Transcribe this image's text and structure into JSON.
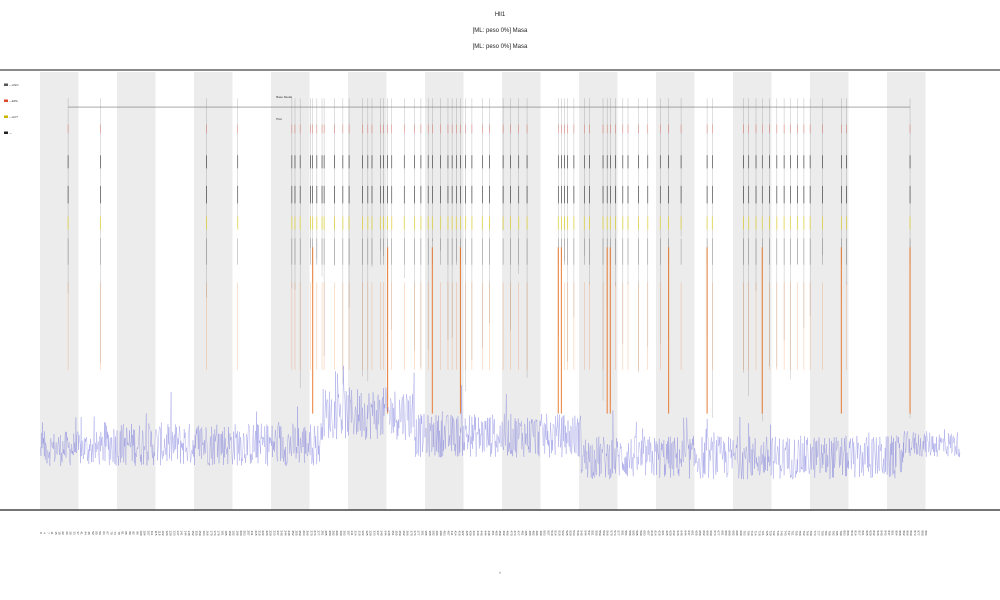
{
  "chart_data": {
    "type": "line",
    "title_lines": [
      "Hll1",
      "[ML: peso 0%] Masa",
      "[ML: peso 0%] Masa"
    ],
    "xlabel": "t",
    "ylabel": "",
    "x_range": [
      0,
      884
    ],
    "y_range": [
      0,
      1
    ],
    "grid": false,
    "shaded_bands": true,
    "legend": {
      "placement": "left",
      "entries": [
        {
          "label": "—ANO",
          "color": "#555555"
        },
        {
          "label": "—EPA",
          "color": "#d94a2a"
        },
        {
          "label": "—ACT",
          "color": "#c9b400"
        },
        {
          "label": "—",
          "color": "#222222"
        }
      ]
    },
    "inline_labels": [
      {
        "text": "Base Media",
        "x": 227
      },
      {
        "text": "Pico",
        "x": 227
      }
    ],
    "colors": {
      "baseline": "#6b6bd9",
      "spike_orange": "#e8762a",
      "spike_red": "#d93a2a",
      "spike_yellow": "#e0d020",
      "spike_dark": "#333333",
      "band": "#ececec"
    },
    "series": [
      {
        "name": "Base",
        "color": "#6b6bd9",
        "segments": [
          {
            "x0": 0,
            "x1": 60,
            "level": 0.14,
            "noise": 0.04
          },
          {
            "x0": 60,
            "x1": 270,
            "level": 0.15,
            "noise": 0.05
          },
          {
            "x0": 270,
            "x1": 360,
            "level": 0.22,
            "noise": 0.06
          },
          {
            "x0": 360,
            "x1": 520,
            "level": 0.17,
            "noise": 0.05
          },
          {
            "x0": 520,
            "x1": 830,
            "level": 0.12,
            "noise": 0.05
          },
          {
            "x0": 830,
            "x1": 884,
            "level": 0.15,
            "noise": 0.03
          }
        ]
      }
    ],
    "events": {
      "x_positions": [
        27,
        58,
        160,
        190,
        242,
        245,
        250,
        260,
        262,
        266,
        271,
        273,
        283,
        291,
        297,
        310,
        315,
        319,
        327,
        330,
        334,
        338,
        350,
        360,
        366,
        373,
        377,
        385,
        392,
        396,
        400,
        404,
        409,
        415,
        425,
        432,
        445,
        452,
        460,
        468,
        498,
        501,
        504,
        507,
        513,
        523,
        528,
        541,
        545,
        548,
        553,
        560,
        565,
        575,
        584,
        596,
        604,
        616,
        641,
        646,
        676,
        681,
        688,
        694,
        701,
        708,
        715,
        721,
        728,
        734,
        740,
        752,
        770,
        775,
        836
      ],
      "tall_orange": [
        262,
        334,
        377,
        404,
        498,
        501,
        545,
        548,
        604,
        641,
        694,
        770,
        836
      ],
      "top": 0.94,
      "bottom_range": [
        0.2,
        0.65
      ]
    },
    "x_ticks_count": 240
  }
}
